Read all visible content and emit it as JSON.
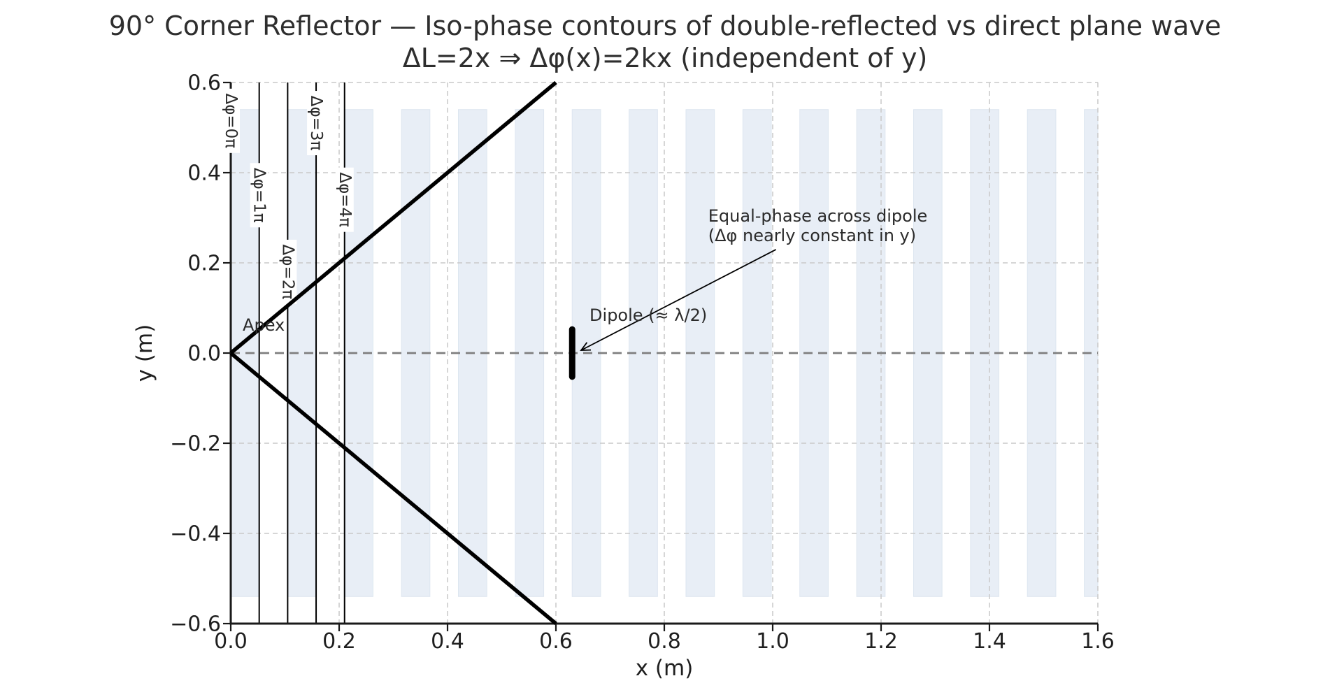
{
  "title": {
    "line1": "90° Corner Reflector — Iso-phase contours of double-reflected vs direct plane wave",
    "line2": "ΔL=2x ⇒ Δφ(x)=2kx (independent of y)"
  },
  "axes": {
    "xlabel": "x (m)",
    "ylabel": "y (m)",
    "xlim": [
      0.0,
      1.6
    ],
    "ylim": [
      -0.6,
      0.6
    ],
    "x_ticks": [
      0.0,
      0.2,
      0.4,
      0.6,
      0.8,
      1.0,
      1.2,
      1.4,
      1.6
    ],
    "x_tick_labels": [
      "0.0",
      "0.2",
      "0.4",
      "0.6",
      "0.8",
      "1.0",
      "1.2",
      "1.4",
      "1.6"
    ],
    "y_ticks": [
      -0.6,
      -0.4,
      -0.2,
      0.0,
      0.2,
      0.4,
      0.6
    ],
    "y_tick_labels": [
      "−0.6",
      "−0.4",
      "−0.2",
      "0.0",
      "0.2",
      "0.4",
      "0.6"
    ],
    "grid": true
  },
  "chart_data": {
    "type": "line",
    "title": "90° Corner Reflector — Iso-phase contours of double-reflected vs direct plane wave",
    "subtitle": "ΔL=2x ⇒ Δφ(x)=2kx (independent of y)",
    "xlabel": "x (m)",
    "ylabel": "y (m)",
    "xlim": [
      0.0,
      1.6
    ],
    "ylim": [
      -0.6,
      0.6
    ],
    "iso_phase_contours": [
      {
        "label": "Δφ=0π",
        "x": 0.0,
        "label_center_y": 0.515
      },
      {
        "label": "Δφ=1π",
        "x": 0.0525,
        "label_center_y": 0.35
      },
      {
        "label": "Δφ=2π",
        "x": 0.105,
        "label_center_y": 0.18
      },
      {
        "label": "Δφ=3π",
        "x": 0.1575,
        "label_center_y": 0.51
      },
      {
        "label": "Δφ=4π",
        "x": 0.21,
        "label_center_y": 0.34
      }
    ],
    "phase_stripes": {
      "x_start": 0.0,
      "period": 0.105,
      "band_width": 0.0525,
      "count": 16,
      "y_min": -0.54,
      "y_max": 0.54
    },
    "reflector_plates": [
      {
        "name": "upper-plate",
        "from": [
          0.0,
          0.0
        ],
        "to": [
          0.6,
          0.6
        ]
      },
      {
        "name": "lower-plate",
        "from": [
          0.0,
          0.0
        ],
        "to": [
          0.6,
          -0.6
        ]
      }
    ],
    "symmetry_axis_y": 0.0,
    "dipole": {
      "x": 0.63,
      "y_min": -0.0525,
      "y_max": 0.0525
    },
    "labels": {
      "apex": {
        "text": "Apex",
        "x": 0.022,
        "y": 0.062
      },
      "dipole": {
        "text": "Dipole (≈ λ/2)",
        "x": 0.662,
        "y": 0.084
      },
      "annotation": {
        "line1": "Equal-phase across dipole",
        "line2": "(Δφ nearly constant in y)",
        "x": 0.881,
        "line1_y": 0.304,
        "line2_y": 0.2605,
        "arrow_from": [
          1.006,
          0.2295
        ],
        "arrow_to": [
          0.6465,
          0.0062
        ]
      }
    }
  },
  "colors": {
    "stripe_fill": "#e8eef6",
    "stripe_edge": "#dde6f0",
    "grid": "#c9c9c9",
    "symmetry_line": "#7f7f7f",
    "geometry": "#000000",
    "text": "#2b2b2b"
  }
}
